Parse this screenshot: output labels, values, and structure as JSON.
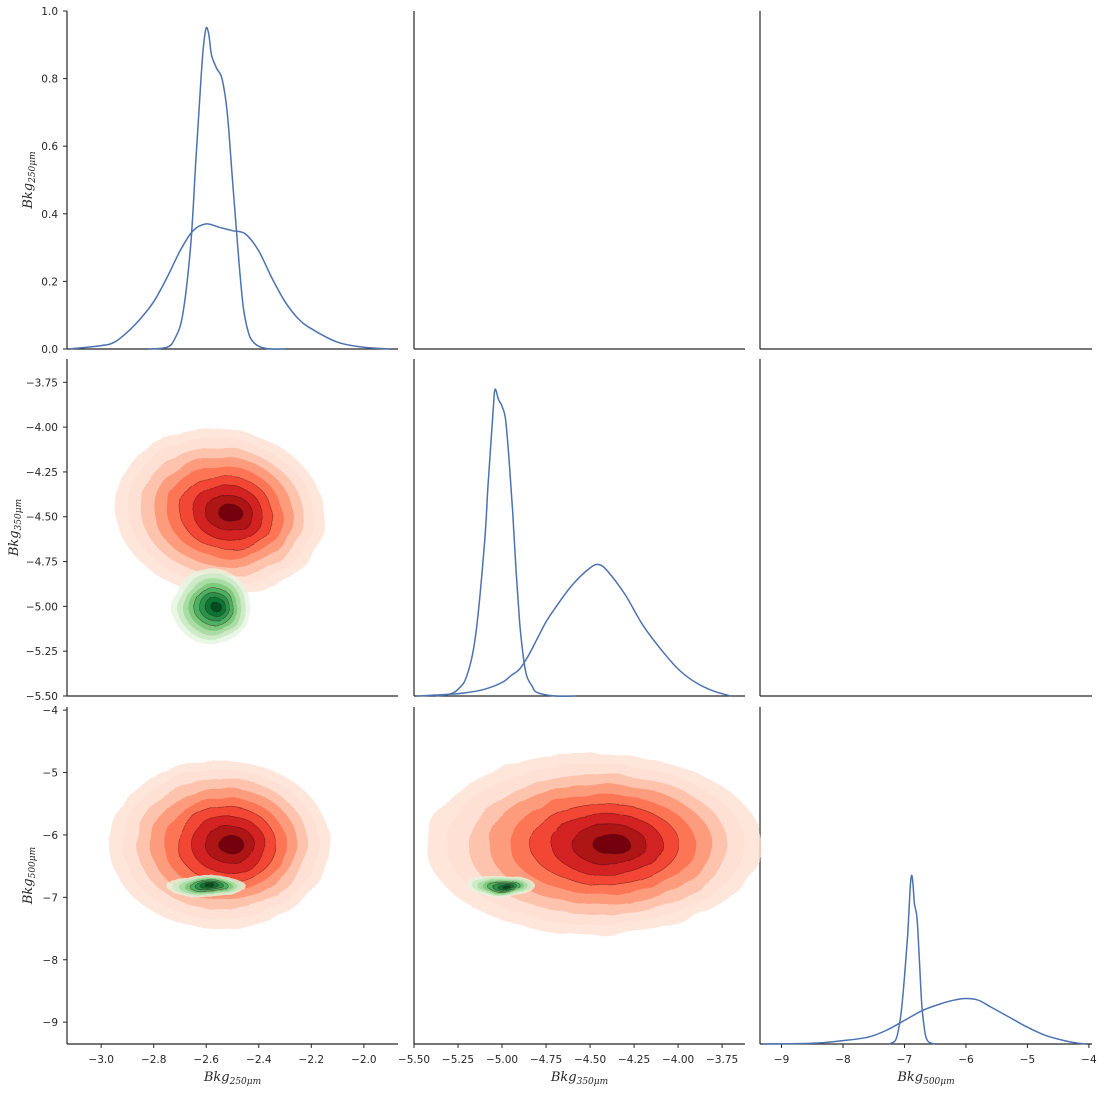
{
  "chart_data": {
    "type": "pairgrid",
    "variables": [
      {
        "key": "b250",
        "base": "Bkg",
        "sub": "250μm",
        "lim": [
          -3.13,
          -1.87
        ],
        "ticks": [
          -3.0,
          -2.8,
          -2.6,
          -2.4,
          -2.2,
          -2.0
        ],
        "tick_labels": [
          "−3.0",
          "−2.8",
          "−2.6",
          "−2.4",
          "−2.2",
          "−2.0"
        ]
      },
      {
        "key": "b350",
        "base": "Bkg",
        "sub": "350μm",
        "lim": [
          -5.5,
          -3.62
        ],
        "ticks": [
          -5.5,
          -5.25,
          -5.0,
          -4.75,
          -4.5,
          -4.25,
          -4.0,
          -3.75
        ],
        "tick_labels": [
          "−5.50",
          "−5.25",
          "−5.00",
          "−4.75",
          "−4.50",
          "−4.25",
          "−4.00",
          "−3.75"
        ]
      },
      {
        "key": "b500",
        "base": "Bkg",
        "sub": "500μm",
        "lim": [
          -9.35,
          -3.95
        ],
        "ticks": [
          -9,
          -8,
          -7,
          -6,
          -5,
          -4
        ],
        "tick_labels": [
          "−9",
          "−8",
          "−7",
          "−6",
          "−5",
          "−4"
        ]
      }
    ],
    "diag_ylim": [
      0,
      1.0
    ],
    "diag_yticks": [
      0.0,
      0.2,
      0.4,
      0.6,
      0.8,
      1.0
    ],
    "diag_ytick_labels": [
      "0.0",
      "0.2",
      "0.4",
      "0.6",
      "0.8",
      "1.0"
    ],
    "diagonal": [
      {
        "var": 0,
        "curves": [
          {
            "x": [
              -3.12,
              -3.0,
              -2.95,
              -2.9,
              -2.85,
              -2.8,
              -2.75,
              -2.7,
              -2.65,
              -2.6,
              -2.55,
              -2.5,
              -2.45,
              -2.4,
              -2.35,
              -2.3,
              -2.25,
              -2.2,
              -2.1,
              -2.0,
              -1.9
            ],
            "y": [
              0.0,
              0.01,
              0.02,
              0.05,
              0.09,
              0.14,
              0.21,
              0.29,
              0.35,
              0.37,
              0.36,
              0.35,
              0.34,
              0.29,
              0.21,
              0.14,
              0.09,
              0.06,
              0.02,
              0.005,
              0.0
            ]
          },
          {
            "x": [
              -2.82,
              -2.75,
              -2.72,
              -2.69,
              -2.66,
              -2.64,
              -2.62,
              -2.61,
              -2.6,
              -2.59,
              -2.58,
              -2.56,
              -2.54,
              -2.52,
              -2.5,
              -2.48,
              -2.46,
              -2.44,
              -2.42,
              -2.39,
              -2.35,
              -2.3
            ],
            "y": [
              0.0,
              0.005,
              0.03,
              0.1,
              0.3,
              0.55,
              0.8,
              0.9,
              0.95,
              0.93,
              0.87,
              0.83,
              0.8,
              0.7,
              0.5,
              0.3,
              0.13,
              0.05,
              0.02,
              0.005,
              0.0,
              0.0
            ]
          }
        ]
      },
      {
        "var": 1,
        "curves": [
          {
            "x": [
              -5.48,
              -5.3,
              -5.2,
              -5.1,
              -5.0,
              -4.95,
              -4.9,
              -4.85,
              -4.8,
              -4.75,
              -4.7,
              -4.6,
              -4.5,
              -4.45,
              -4.4,
              -4.3,
              -4.2,
              -4.1,
              -4.0,
              -3.9,
              -3.8,
              -3.7
            ],
            "y": [
              0.0,
              0.005,
              0.01,
              0.02,
              0.04,
              0.06,
              0.08,
              0.12,
              0.17,
              0.22,
              0.26,
              0.33,
              0.38,
              0.39,
              0.37,
              0.3,
              0.21,
              0.14,
              0.08,
              0.04,
              0.015,
              0.0
            ]
          },
          {
            "x": [
              -5.38,
              -5.3,
              -5.25,
              -5.2,
              -5.15,
              -5.1,
              -5.08,
              -5.05,
              -5.04,
              -5.02,
              -5.0,
              -4.98,
              -4.96,
              -4.94,
              -4.92,
              -4.9,
              -4.88,
              -4.86,
              -4.83,
              -4.8,
              -4.7,
              -4.58
            ],
            "y": [
              0.0,
              0.005,
              0.02,
              0.06,
              0.18,
              0.45,
              0.62,
              0.85,
              0.91,
              0.88,
              0.86,
              0.82,
              0.7,
              0.55,
              0.37,
              0.22,
              0.12,
              0.06,
              0.03,
              0.01,
              0.0,
              0.0
            ]
          }
        ]
      },
      {
        "var": 2,
        "curves": [
          {
            "x": [
              -9.3,
              -8.5,
              -8.0,
              -7.6,
              -7.3,
              -7.0,
              -6.7,
              -6.4,
              -6.2,
              -6.0,
              -5.8,
              -5.6,
              -5.3,
              -5.0,
              -4.7,
              -4.4,
              -4.2,
              -4.05
            ],
            "y": [
              0.0,
              0.002,
              0.01,
              0.02,
              0.04,
              0.07,
              0.1,
              0.12,
              0.13,
              0.135,
              0.13,
              0.11,
              0.08,
              0.05,
              0.025,
              0.01,
              0.003,
              0.0
            ]
          },
          {
            "x": [
              -7.25,
              -7.15,
              -7.1,
              -7.05,
              -7.0,
              -6.95,
              -6.92,
              -6.9,
              -6.88,
              -6.86,
              -6.84,
              -6.82,
              -6.8,
              -6.78,
              -6.75,
              -6.72,
              -6.68,
              -6.65,
              -6.6,
              -6.5
            ],
            "y": [
              0.0,
              0.01,
              0.04,
              0.1,
              0.2,
              0.32,
              0.42,
              0.48,
              0.5,
              0.47,
              0.42,
              0.4,
              0.38,
              0.33,
              0.22,
              0.12,
              0.05,
              0.02,
              0.005,
              0.0
            ]
          }
        ]
      }
    ],
    "lower": [
      {
        "row": 1,
        "col": 0,
        "contour_sets": [
          {
            "palette": "red",
            "cx": -2.55,
            "cy": -4.47,
            "rx": 0.4,
            "ry": 0.46,
            "rot": 8,
            "levels": 9
          },
          {
            "palette": "green",
            "cx": -2.58,
            "cy": -5.0,
            "rx": 0.15,
            "ry": 0.21,
            "rot": 0,
            "levels": 8
          }
        ]
      },
      {
        "row": 2,
        "col": 0,
        "contour_sets": [
          {
            "palette": "red",
            "cx": -2.55,
            "cy": -6.15,
            "rx": 0.42,
            "ry": 1.35,
            "rot": 0,
            "levels": 9
          },
          {
            "palette": "green",
            "cx": -2.6,
            "cy": -6.82,
            "rx": 0.15,
            "ry": 0.18,
            "rot": 0,
            "levels": 8
          }
        ]
      },
      {
        "row": 2,
        "col": 1,
        "contour_sets": [
          {
            "palette": "red",
            "cx": -4.48,
            "cy": -6.15,
            "rx": 0.95,
            "ry": 1.45,
            "rot": 0,
            "levels": 9
          },
          {
            "palette": "green",
            "cx": -5.0,
            "cy": -6.82,
            "rx": 0.19,
            "ry": 0.17,
            "rot": 0,
            "levels": 8
          }
        ]
      }
    ],
    "grid": false,
    "colors": {
      "kde_line": "#4c72b0",
      "red_palette": [
        "#fee0d2",
        "#fcbba1",
        "#fc9272",
        "#fb6a4a",
        "#ef3b2c",
        "#cb181d",
        "#a50f15",
        "#67000d"
      ],
      "green_palette": [
        "#e5f5e0",
        "#c7e9c0",
        "#a1d99b",
        "#74c476",
        "#41ab5d",
        "#238b45",
        "#006d2c",
        "#00441b"
      ]
    }
  }
}
